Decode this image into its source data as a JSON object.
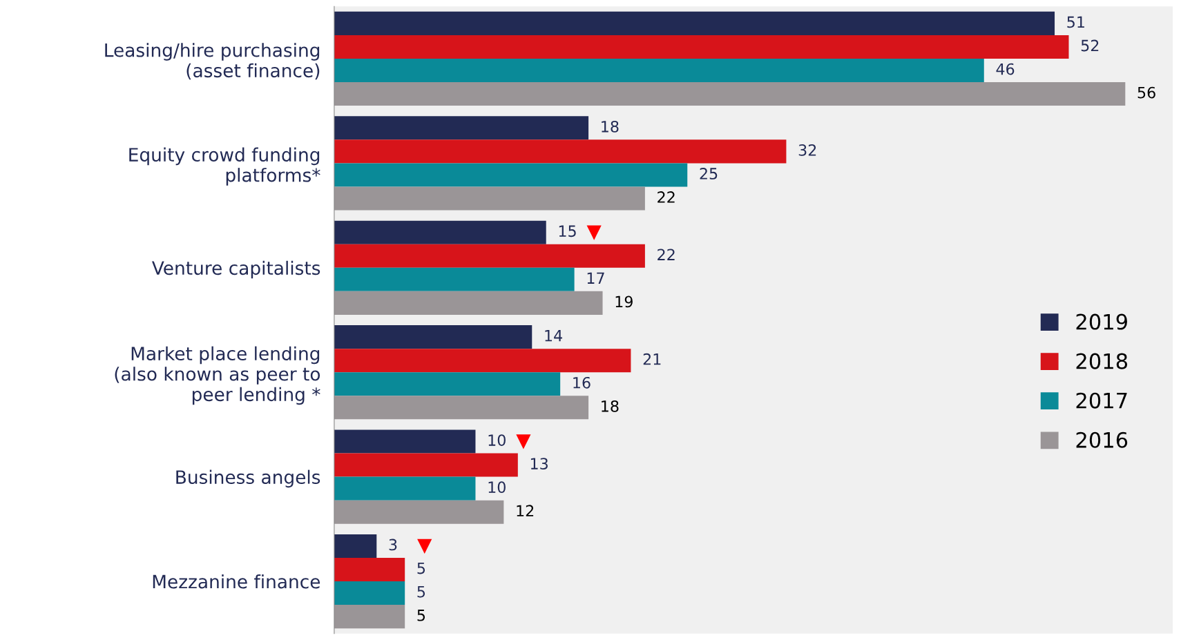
{
  "chart_data": {
    "type": "bar",
    "orientation": "horizontal",
    "data_labels": true,
    "legend": "right",
    "grid": false,
    "categories": [
      "Leasing/hire purchasing\n(asset finance)",
      "Equity crowd funding\nplatforms*",
      "Venture capitalists",
      "Market place lending\n(also known as peer to\npeer lending *",
      "Business angels",
      "Mezzanine finance"
    ],
    "series": [
      {
        "name": "2019",
        "color": "#222a54",
        "values": [
          51,
          18,
          15,
          14,
          10,
          3
        ]
      },
      {
        "name": "2018",
        "color": "#d7141a",
        "values": [
          52,
          32,
          22,
          21,
          13,
          5
        ]
      },
      {
        "name": "2017",
        "color": "#0a8a98",
        "values": [
          46,
          25,
          17,
          16,
          10,
          5
        ]
      },
      {
        "name": "2016",
        "color": "#9a9597",
        "values": [
          56,
          22,
          19,
          18,
          12,
          5
        ]
      }
    ],
    "annotations": [
      {
        "text": "▼",
        "x": 15,
        "y": "Venture capitalists"
      },
      {
        "text": "▼",
        "x": 10,
        "y": "Business angels"
      },
      {
        "text": "▼",
        "x": 3,
        "y": "Mezzanine finance"
      }
    ]
  }
}
